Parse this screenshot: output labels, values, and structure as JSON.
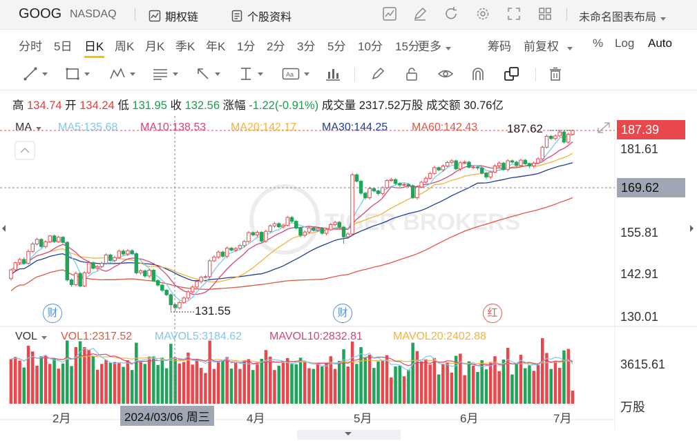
{
  "topbar": {
    "ticker": "GOOG",
    "exchange": "NASDAQ",
    "options_chain": "期权链",
    "stock_profile": "个股资料",
    "layout_name": "未命名图表布局"
  },
  "periods": [
    "分时",
    "5日",
    "日K",
    "周K",
    "月K",
    "季K",
    "年K",
    "1分",
    "2分",
    "3分",
    "5分",
    "10分",
    "15分"
  ],
  "periods_more": "更多",
  "period_active": "日K",
  "right_options": {
    "chips": "筹码",
    "adjust": "前复权",
    "percent": "%",
    "log": "Log",
    "auto": "Auto"
  },
  "quote": {
    "high_label": "高",
    "high": "134.74",
    "open_label": "开",
    "open": "134.24",
    "low_label": "低",
    "low": "131.95",
    "close_label": "收",
    "close": "132.56",
    "change_label": "涨幅",
    "change": "-1.22(-0.91%)",
    "volume_label": "成交量",
    "volume": "2317.52万股",
    "turnover_label": "成交额",
    "turnover": "30.76亿"
  },
  "ma_legend": {
    "name": "MA",
    "items": [
      {
        "text": "MA5:135.68",
        "color": "#7fc7ee"
      },
      {
        "text": "MA10:138.53",
        "color": "#d6457a"
      },
      {
        "text": "MA20:142.17",
        "color": "#f0b43c"
      },
      {
        "text": "MA30:144.25",
        "color": "#1c3f95"
      },
      {
        "text": "MA60:142.43",
        "color": "#e0573f"
      }
    ]
  },
  "vol_legend": {
    "name": "VOL",
    "items": [
      {
        "text": "VOL1:2317.52",
        "color": "#e0573f"
      },
      {
        "text": "MAVOL5:3184.62",
        "color": "#7fc7ee"
      },
      {
        "text": "MAVOL10:2832.81",
        "color": "#d6457a"
      },
      {
        "text": "MAVOL20:2402.88",
        "color": "#f0b43c"
      }
    ]
  },
  "price_axis": [
    "181.61",
    "155.81",
    "142.91",
    "130.01"
  ],
  "current_price": "187.39",
  "crosshair_price": "169.62",
  "high_mark": "187.62",
  "low_mark": "131.55",
  "vol_axis": "3615.61",
  "vol_unit": "万股",
  "x_axis": [
    "2月",
    "4月",
    "5月",
    "6月",
    "7月"
  ],
  "crosshair_date": "2024/03/06 周三",
  "badges": [
    {
      "text": "财",
      "color": "#5a8fd6"
    },
    {
      "text": "财",
      "color": "#5a8fd6"
    },
    {
      "text": "红",
      "color": "#e05a5a"
    }
  ],
  "watermark": "TIGER BROKERS",
  "colors": {
    "up": "#e8474c",
    "down": "#1ea55a",
    "accent": "#f5c400"
  },
  "chart_data": {
    "type": "candlestick",
    "x_ticks": [
      "2月",
      "4月",
      "5月",
      "6月",
      "7月"
    ],
    "ylim": [
      130.01,
      187.62
    ],
    "candles": [
      [
        141.6,
        144.3,
        141.0,
        144.6
      ],
      [
        144.3,
        146.5,
        143.6,
        146.9
      ],
      [
        146.5,
        147.5,
        145.8,
        148.0
      ],
      [
        147.5,
        146.3,
        145.9,
        148.2
      ],
      [
        146.3,
        150.0,
        145.9,
        150.6
      ],
      [
        150.0,
        152.3,
        149.6,
        152.9
      ],
      [
        152.3,
        153.7,
        151.8,
        154.2
      ],
      [
        153.7,
        151.5,
        151.0,
        154.1
      ],
      [
        151.5,
        153.0,
        150.9,
        153.5
      ],
      [
        153.0,
        154.8,
        152.6,
        155.1
      ],
      [
        154.8,
        153.0,
        152.6,
        155.2
      ],
      [
        153.0,
        154.4,
        152.6,
        154.9
      ],
      [
        154.4,
        152.8,
        152.4,
        154.8
      ],
      [
        152.8,
        141.2,
        140.7,
        153.2
      ],
      [
        141.2,
        139.7,
        139.1,
        141.6
      ],
      [
        139.7,
        143.2,
        139.3,
        143.8
      ],
      [
        143.2,
        139.3,
        138.9,
        143.6
      ],
      [
        139.3,
        143.4,
        138.9,
        143.9
      ],
      [
        143.4,
        146.5,
        143.0,
        147.0
      ],
      [
        146.5,
        144.8,
        144.4,
        146.9
      ],
      [
        144.8,
        145.3,
        144.1,
        145.8
      ],
      [
        145.3,
        146.3,
        144.9,
        146.8
      ],
      [
        146.3,
        148.9,
        145.9,
        149.4
      ],
      [
        148.9,
        147.2,
        146.8,
        149.3
      ],
      [
        147.2,
        148.1,
        146.6,
        148.6
      ],
      [
        148.1,
        150.1,
        147.7,
        150.6
      ],
      [
        150.1,
        149.2,
        148.8,
        150.6
      ],
      [
        149.2,
        150.2,
        148.6,
        150.7
      ],
      [
        150.2,
        149.3,
        148.9,
        150.7
      ],
      [
        149.3,
        143.4,
        142.9,
        149.7
      ],
      [
        143.4,
        144.0,
        142.8,
        144.5
      ],
      [
        144.0,
        142.4,
        141.9,
        144.4
      ],
      [
        142.4,
        144.2,
        141.8,
        144.7
      ],
      [
        144.2,
        141.0,
        140.6,
        144.6
      ],
      [
        141.0,
        139.6,
        139.2,
        141.4
      ],
      [
        139.6,
        138.0,
        137.4,
        140.0
      ],
      [
        138.0,
        136.6,
        136.2,
        138.4
      ],
      [
        136.6,
        133.5,
        131.6,
        137.0
      ],
      [
        133.5,
        132.6,
        131.6,
        133.9
      ],
      [
        132.6,
        134.2,
        132.0,
        134.7
      ],
      [
        134.2,
        135.6,
        133.8,
        136.1
      ],
      [
        135.6,
        137.5,
        135.0,
        138.0
      ],
      [
        137.5,
        139.0,
        137.1,
        139.5
      ],
      [
        139.0,
        140.7,
        138.6,
        141.2
      ],
      [
        140.7,
        142.0,
        140.1,
        142.5
      ],
      [
        142.0,
        142.2,
        141.6,
        142.7
      ],
      [
        142.2,
        147.1,
        141.6,
        147.6
      ],
      [
        147.1,
        148.3,
        146.7,
        148.8
      ],
      [
        148.3,
        149.8,
        147.7,
        150.3
      ],
      [
        149.8,
        148.5,
        148.1,
        150.2
      ],
      [
        148.5,
        151.0,
        147.9,
        151.5
      ],
      [
        151.0,
        150.4,
        150.0,
        151.4
      ],
      [
        150.4,
        150.9,
        149.8,
        151.4
      ],
      [
        150.9,
        151.8,
        150.5,
        152.3
      ],
      [
        151.8,
        153.1,
        151.2,
        153.6
      ],
      [
        153.1,
        155.8,
        152.7,
        156.3
      ],
      [
        155.8,
        155.1,
        154.7,
        156.2
      ],
      [
        155.1,
        155.9,
        154.5,
        156.4
      ],
      [
        155.9,
        153.2,
        152.8,
        156.3
      ],
      [
        153.2,
        156.2,
        152.6,
        156.7
      ],
      [
        156.2,
        157.9,
        155.8,
        158.4
      ],
      [
        157.9,
        158.6,
        157.3,
        159.1
      ],
      [
        158.6,
        157.6,
        157.2,
        159.0
      ],
      [
        157.6,
        158.1,
        157.0,
        158.6
      ],
      [
        158.1,
        160.5,
        157.7,
        161.0
      ],
      [
        160.5,
        159.3,
        158.9,
        160.9
      ],
      [
        159.3,
        157.2,
        156.8,
        159.7
      ],
      [
        157.2,
        155.0,
        154.4,
        157.6
      ],
      [
        155.0,
        156.0,
        154.4,
        156.5
      ],
      [
        156.0,
        157.3,
        155.6,
        157.8
      ],
      [
        157.3,
        156.6,
        156.2,
        157.7
      ],
      [
        156.6,
        157.1,
        156.0,
        157.6
      ],
      [
        157.1,
        155.6,
        155.2,
        157.5
      ],
      [
        155.6,
        156.7,
        155.0,
        157.2
      ],
      [
        156.7,
        158.3,
        156.3,
        158.8
      ],
      [
        158.3,
        159.0,
        157.7,
        159.5
      ],
      [
        159.0,
        157.5,
        157.1,
        159.4
      ],
      [
        157.5,
        154.5,
        152.4,
        157.9
      ],
      [
        154.5,
        155.4,
        153.9,
        155.9
      ],
      [
        155.4,
        173.7,
        154.8,
        174.2
      ],
      [
        173.7,
        171.7,
        171.3,
        174.1
      ],
      [
        171.7,
        168.0,
        167.6,
        172.1
      ],
      [
        168.0,
        166.6,
        166.0,
        168.4
      ],
      [
        166.6,
        169.4,
        166.0,
        169.9
      ],
      [
        169.4,
        168.7,
        168.3,
        169.8
      ],
      [
        168.7,
        167.9,
        167.3,
        169.1
      ],
      [
        167.9,
        169.7,
        167.3,
        170.2
      ],
      [
        169.7,
        171.9,
        169.3,
        172.4
      ],
      [
        171.9,
        172.2,
        171.6,
        172.7
      ],
      [
        172.2,
        171.0,
        170.6,
        172.6
      ],
      [
        171.0,
        170.5,
        169.9,
        171.4
      ],
      [
        170.5,
        170.7,
        170.1,
        171.2
      ],
      [
        170.7,
        170.3,
        169.7,
        171.1
      ],
      [
        170.3,
        166.6,
        166.2,
        170.7
      ],
      [
        166.6,
        169.9,
        166.0,
        170.4
      ],
      [
        169.9,
        171.4,
        169.5,
        171.9
      ],
      [
        171.4,
        172.6,
        171.0,
        173.1
      ],
      [
        172.6,
        174.1,
        172.2,
        174.6
      ],
      [
        174.1,
        175.9,
        173.7,
        176.4
      ],
      [
        175.9,
        175.2,
        174.8,
        176.3
      ],
      [
        175.2,
        176.4,
        174.6,
        176.9
      ],
      [
        176.4,
        177.5,
        176.0,
        178.0
      ],
      [
        177.5,
        178.0,
        176.9,
        178.5
      ],
      [
        178.0,
        175.5,
        175.1,
        178.4
      ],
      [
        175.5,
        177.4,
        174.9,
        177.9
      ],
      [
        177.4,
        177.6,
        177.0,
        178.1
      ],
      [
        177.6,
        176.0,
        175.6,
        178.0
      ],
      [
        176.0,
        176.1,
        175.4,
        176.6
      ],
      [
        176.1,
        175.8,
        175.2,
        176.6
      ],
      [
        175.8,
        174.2,
        173.8,
        176.2
      ],
      [
        174.2,
        173.0,
        172.4,
        174.6
      ],
      [
        173.0,
        174.5,
        172.4,
        175.0
      ],
      [
        174.5,
        176.4,
        174.1,
        176.9
      ],
      [
        176.4,
        177.3,
        176.0,
        177.8
      ],
      [
        177.3,
        175.3,
        174.9,
        177.7
      ],
      [
        175.3,
        178.0,
        174.7,
        178.5
      ],
      [
        178.0,
        177.6,
        177.2,
        178.4
      ],
      [
        177.6,
        176.6,
        176.0,
        178.0
      ],
      [
        176.6,
        178.2,
        176.0,
        178.7
      ],
      [
        178.2,
        177.1,
        176.7,
        178.6
      ],
      [
        177.1,
        176.4,
        175.8,
        177.5
      ],
      [
        176.4,
        177.3,
        175.8,
        177.8
      ],
      [
        177.3,
        178.6,
        176.9,
        179.1
      ],
      [
        178.6,
        182.2,
        178.0,
        182.7
      ],
      [
        182.2,
        185.6,
        181.8,
        186.1
      ],
      [
        185.6,
        184.9,
        184.5,
        186.0
      ],
      [
        184.9,
        185.7,
        184.3,
        186.2
      ],
      [
        185.7,
        186.9,
        185.3,
        187.4
      ],
      [
        186.9,
        183.8,
        183.4,
        187.3
      ],
      [
        183.8,
        186.2,
        183.2,
        186.7
      ],
      [
        186.2,
        187.39,
        185.8,
        187.62
      ]
    ],
    "volume_scale_max": 3615.61
  }
}
